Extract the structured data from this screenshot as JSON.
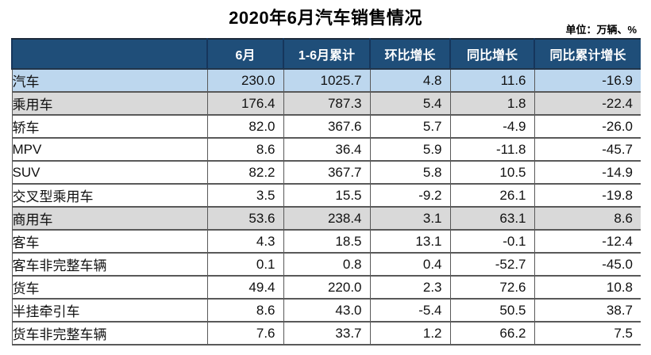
{
  "chart_data": {
    "type": "table",
    "title": "2020年6月汽车销售情况",
    "unit": "单位：万辆、%",
    "columns": [
      "",
      "6月",
      "1-6月累计",
      "环比增长",
      "同比增长",
      "同比累计增长"
    ],
    "rows": [
      {
        "label": "汽车",
        "indent": 0,
        "style": "blue",
        "values": [
          "230.0",
          "1025.7",
          "4.8",
          "11.6",
          "-16.9"
        ]
      },
      {
        "label": "乘用车",
        "indent": 1,
        "style": "gray",
        "values": [
          "176.4",
          "787.3",
          "5.4",
          "1.8",
          "-22.4"
        ]
      },
      {
        "label": "轿车",
        "indent": 2,
        "style": "white",
        "values": [
          "82.0",
          "367.6",
          "5.7",
          "-4.9",
          "-26.0"
        ]
      },
      {
        "label": "MPV",
        "indent": 2,
        "style": "white",
        "values": [
          "8.6",
          "36.4",
          "5.9",
          "-11.8",
          "-45.7"
        ]
      },
      {
        "label": "SUV",
        "indent": 2,
        "style": "white",
        "values": [
          "82.2",
          "367.7",
          "5.8",
          "10.5",
          "-14.9"
        ]
      },
      {
        "label": "交叉型乘用车",
        "indent": 2,
        "style": "white",
        "values": [
          "3.5",
          "15.5",
          "-9.2",
          "26.1",
          "-19.8"
        ]
      },
      {
        "label": "商用车",
        "indent": 1,
        "style": "gray",
        "values": [
          "53.6",
          "238.4",
          "3.1",
          "63.1",
          "8.6"
        ]
      },
      {
        "label": "客车",
        "indent": 2,
        "style": "white",
        "values": [
          "4.3",
          "18.5",
          "13.1",
          "-0.1",
          "-12.4"
        ]
      },
      {
        "label": "客车非完整车辆",
        "indent": 3,
        "style": "white",
        "values": [
          "0.1",
          "0.8",
          "0.4",
          "-52.7",
          "-45.0"
        ]
      },
      {
        "label": "货车",
        "indent": 2,
        "style": "white",
        "values": [
          "49.4",
          "220.0",
          "2.3",
          "72.6",
          "10.8"
        ]
      },
      {
        "label": "半挂牵引车",
        "indent": 3,
        "style": "white",
        "values": [
          "8.6",
          "43.0",
          "-5.4",
          "50.5",
          "38.7"
        ]
      },
      {
        "label": "货车非完整车辆",
        "indent": 3,
        "style": "white",
        "values": [
          "7.6",
          "33.7",
          "1.2",
          "66.2",
          "7.5"
        ]
      }
    ]
  },
  "colors": {
    "header_bg": "#1F4E79",
    "header_text": "#FFFFFF",
    "row_highlight_blue": "#BDD7EE",
    "row_highlight_gray": "#D9D9D9",
    "grid_border": "#595959"
  }
}
